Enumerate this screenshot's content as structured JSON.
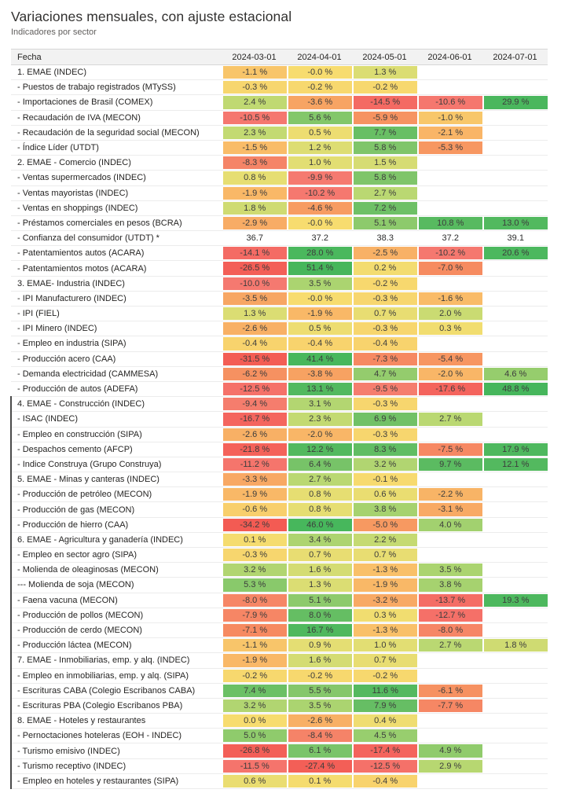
{
  "title": "Variaciones mensuales, con ajuste estacional",
  "subtitle": "Indicadores por sector",
  "chart_data": {
    "type": "heatmap",
    "title": "Variaciones mensuales, con ajuste estacional",
    "subtitle": "Indicadores por sector",
    "row_header": "Fecha",
    "columns": [
      "2024-03-01",
      "2024-04-01",
      "2024-05-01",
      "2024-06-01",
      "2024-07-01"
    ],
    "legend_position": "none",
    "grid": true,
    "color_scale": {
      "negative_max": "#F35B52",
      "zero": "#F7DC6F",
      "positive_max": "#45B65B"
    },
    "color_stops": [
      [
        -35,
        "#F35B52"
      ],
      [
        -16,
        "#F4655E"
      ],
      [
        -10,
        "#F57970"
      ],
      [
        -9,
        "#F5806B"
      ],
      [
        -7,
        "#F68B60"
      ],
      [
        -4,
        "#F7A062"
      ],
      [
        -1.5,
        "#F9BC68"
      ],
      [
        0,
        "#F7DC6F"
      ],
      [
        1,
        "#E2DE73"
      ],
      [
        2.5,
        "#BED972"
      ],
      [
        4,
        "#A2D16F"
      ],
      [
        6,
        "#7BC469"
      ],
      [
        8.5,
        "#5FBC62"
      ],
      [
        12,
        "#53B95F"
      ],
      [
        20,
        "#4CB85E"
      ],
      [
        55,
        "#45B65B"
      ]
    ],
    "rows": [
      {
        "label": "1. EMAE (INDEC)",
        "colored": true,
        "values": [
          "-1.1 %",
          "-0.0 %",
          "1.3 %",
          null,
          null
        ]
      },
      {
        "label": "- Puestos de trabajo registrados (MTySS)",
        "colored": true,
        "values": [
          "-0.3 %",
          "-0.2 %",
          "-0.2 %",
          null,
          null
        ]
      },
      {
        "label": "- Importaciones de Brasil (COMEX)",
        "colored": true,
        "values": [
          "2.4 %",
          "-3.6 %",
          "-14.5 %",
          "-10.6 %",
          "29.9 %"
        ]
      },
      {
        "label": "- Recaudación de IVA (MECON)",
        "colored": true,
        "values": [
          "-10.5 %",
          "5.6 %",
          "-5.9 %",
          "-1.0 %",
          null
        ]
      },
      {
        "label": "- Recaudación de la seguridad social (MECON)",
        "colored": true,
        "values": [
          "2.3 %",
          "0.5 %",
          "7.7 %",
          "-2.1 %",
          null
        ]
      },
      {
        "label": "- Índice Líder (UTDT)",
        "colored": true,
        "values": [
          "-1.5 %",
          "1.2 %",
          "5.8 %",
          "-5.3 %",
          null
        ]
      },
      {
        "label": "2. EMAE - Comercio (INDEC)",
        "colored": true,
        "values": [
          "-8.3 %",
          "1.0 %",
          "1.5 %",
          null,
          null
        ]
      },
      {
        "label": "- Ventas supermercados (INDEC)",
        "colored": true,
        "values": [
          "0.8 %",
          "-9.9 %",
          "5.8 %",
          null,
          null
        ]
      },
      {
        "label": "- Ventas mayoristas (INDEC)",
        "colored": true,
        "values": [
          "-1.9 %",
          "-10.2 %",
          "2.7 %",
          null,
          null
        ]
      },
      {
        "label": "- Ventas en shoppings (INDEC)",
        "colored": true,
        "values": [
          "1.8 %",
          "-4.6 %",
          "7.2 %",
          null,
          null
        ]
      },
      {
        "label": "- Préstamos comerciales en pesos (BCRA)",
        "colored": true,
        "values": [
          "-2.9 %",
          "-0.0 %",
          "5.1 %",
          "10.8 %",
          "13.0 %"
        ]
      },
      {
        "label": "- Confianza del consumidor (UTDT) *",
        "colored": false,
        "values": [
          "36.7",
          "37.2",
          "38.3",
          "37.2",
          "39.1"
        ]
      },
      {
        "label": "- Patentamientos autos (ACARA)",
        "colored": true,
        "values": [
          "-14.1 %",
          "28.0 %",
          "-2.5 %",
          "-10.2 %",
          "20.6 %"
        ]
      },
      {
        "label": "- Patentamientos motos (ACARA)",
        "colored": true,
        "values": [
          "-26.5 %",
          "51.4 %",
          "0.2 %",
          "-7.0 %",
          null
        ]
      },
      {
        "label": "3. EMAE- Industria (INDEC)",
        "colored": true,
        "values": [
          "-10.0 %",
          "3.5 %",
          "-0.2 %",
          null,
          null
        ]
      },
      {
        "label": "- IPI Manufacturero (INDEC)",
        "colored": true,
        "values": [
          "-3.5 %",
          "-0.0 %",
          "-0.3 %",
          "-1.6 %",
          null
        ]
      },
      {
        "label": "- IPI (FIEL)",
        "colored": true,
        "values": [
          "1.3 %",
          "-1.9 %",
          "0.7 %",
          "2.0 %",
          null
        ]
      },
      {
        "label": "- IPI Minero (INDEC)",
        "colored": true,
        "values": [
          "-2.6 %",
          "0.5 %",
          "-0.3 %",
          "0.3 %",
          null
        ]
      },
      {
        "label": "- Empleo en industria (SIPA)",
        "colored": true,
        "values": [
          "-0.4 %",
          "-0.4 %",
          "-0.4 %",
          null,
          null
        ]
      },
      {
        "label": "- Producción acero (CAA)",
        "colored": true,
        "values": [
          "-31.5 %",
          "41.4 %",
          "-7.3 %",
          "-5.4 %",
          null
        ]
      },
      {
        "label": "- Demanda electricidad (CAMMESA)",
        "colored": true,
        "values": [
          "-6.2 %",
          "-3.8 %",
          "4.7 %",
          "-2.0 %",
          "4.6 %"
        ]
      },
      {
        "label": "- Producción de autos (ADEFA)",
        "colored": true,
        "values": [
          "-12.5 %",
          "13.1 %",
          "-9.5 %",
          "-17.6 %",
          "48.8 %"
        ]
      },
      {
        "label": "4. EMAE - Construcción (INDEC)",
        "colored": true,
        "values": [
          "-9.4 %",
          "3.1 %",
          "-0.3 %",
          null,
          null
        ]
      },
      {
        "label": "- ISAC (INDEC)",
        "colored": true,
        "values": [
          "-16.7 %",
          "2.3 %",
          "6.9 %",
          "2.7 %",
          null
        ]
      },
      {
        "label": "- Empleo en construcción (SIPA)",
        "colored": true,
        "values": [
          "-2.6 %",
          "-2.0 %",
          "-0.3 %",
          null,
          null
        ]
      },
      {
        "label": "- Despachos cemento (AFCP)",
        "colored": true,
        "values": [
          "-21.8 %",
          "12.2 %",
          "8.3 %",
          "-7.5 %",
          "17.9 %"
        ]
      },
      {
        "label": "- Indice Construya (Grupo Construya)",
        "colored": true,
        "values": [
          "-11.2 %",
          "6.4 %",
          "3.2 %",
          "9.7 %",
          "12.1 %"
        ]
      },
      {
        "label": "5. EMAE - Minas y canteras (INDEC)",
        "colored": true,
        "values": [
          "-3.3 %",
          "2.7 %",
          "-0.1 %",
          null,
          null
        ]
      },
      {
        "label": "- Producción de petróleo (MECON)",
        "colored": true,
        "values": [
          "-1.9 %",
          "0.8 %",
          "0.6 %",
          "-2.2 %",
          null
        ]
      },
      {
        "label": "- Producción de gas (MECON)",
        "colored": true,
        "values": [
          "-0.6 %",
          "0.8 %",
          "3.8 %",
          "-3.1 %",
          null
        ]
      },
      {
        "label": "- Producción de hierro (CAA)",
        "colored": true,
        "values": [
          "-34.2 %",
          "46.0 %",
          "-5.0 %",
          "4.0 %",
          null
        ]
      },
      {
        "label": "6. EMAE - Agricultura y ganadería (INDEC)",
        "colored": true,
        "values": [
          "0.1 %",
          "3.4 %",
          "2.2 %",
          null,
          null
        ]
      },
      {
        "label": "- Empleo en sector agro (SIPA)",
        "colored": true,
        "values": [
          "-0.3 %",
          "0.7 %",
          "0.7 %",
          null,
          null
        ]
      },
      {
        "label": "- Molienda de oleaginosas (MECON)",
        "colored": true,
        "values": [
          "3.2 %",
          "1.6 %",
          "-1.3 %",
          "3.5 %",
          null
        ]
      },
      {
        "label": "--- Molienda de soja (MECON)",
        "colored": true,
        "values": [
          "5.3 %",
          "1.3 %",
          "-1.9 %",
          "3.8 %",
          null
        ]
      },
      {
        "label": "- Faena vacuna (MECON)",
        "colored": true,
        "values": [
          "-8.0 %",
          "5.1 %",
          "-3.2 %",
          "-13.7 %",
          "19.3 %"
        ]
      },
      {
        "label": "- Producción de pollos (MECON)",
        "colored": true,
        "values": [
          "-7.9 %",
          "8.0 %",
          "0.3 %",
          "-12.7 %",
          null
        ]
      },
      {
        "label": "- Producción de cerdo (MECON)",
        "colored": true,
        "values": [
          "-7.1 %",
          "16.7 %",
          "-1.3 %",
          "-8.0 %",
          null
        ]
      },
      {
        "label": "- Producción láctea (MECON)",
        "colored": true,
        "values": [
          "-1.1 %",
          "0.9 %",
          "1.0 %",
          "2.7 %",
          "1.8 %"
        ]
      },
      {
        "label": "7. EMAE - Inmobiliarias, emp. y alq. (INDEC)",
        "colored": true,
        "values": [
          "-1.9 %",
          "1.6 %",
          "0.7 %",
          null,
          null
        ]
      },
      {
        "label": "- Empleo en inmobiliarias, emp. y alq. (SIPA)",
        "colored": true,
        "values": [
          "-0.2 %",
          "-0.2 %",
          "-0.2 %",
          null,
          null
        ]
      },
      {
        "label": "- Escrituras CABA (Colegio Escribanos CABA)",
        "colored": true,
        "values": [
          "7.4 %",
          "5.5 %",
          "11.6 %",
          "-6.1 %",
          null
        ]
      },
      {
        "label": "- Escrituras PBA (Colegio Escribanos PBA)",
        "colored": true,
        "values": [
          "3.2 %",
          "3.5 %",
          "7.9 %",
          "-7.7 %",
          null
        ]
      },
      {
        "label": "8. EMAE - Hoteles y restaurantes",
        "colored": true,
        "values": [
          "0.0 %",
          "-2.6 %",
          "0.4 %",
          null,
          null
        ]
      },
      {
        "label": "- Pernoctaciones hoteleras (EOH - INDEC)",
        "colored": true,
        "values": [
          "5.0 %",
          "-8.4 %",
          "4.5 %",
          null,
          null
        ]
      },
      {
        "label": "- Turismo emisivo (INDEC)",
        "colored": true,
        "values": [
          "-26.8 %",
          "6.1 %",
          "-17.4 %",
          "4.9 %",
          null
        ]
      },
      {
        "label": "- Turismo receptivo (INDEC)",
        "colored": true,
        "values": [
          "-11.5 %",
          "-27.4 %",
          "-12.5 %",
          "2.9 %",
          null
        ]
      },
      {
        "label": "- Empleo en hoteles y restaurantes (SIPA)",
        "colored": true,
        "values": [
          "0.6 %",
          "0.1 %",
          "-0.4 %",
          null,
          null
        ]
      }
    ]
  }
}
